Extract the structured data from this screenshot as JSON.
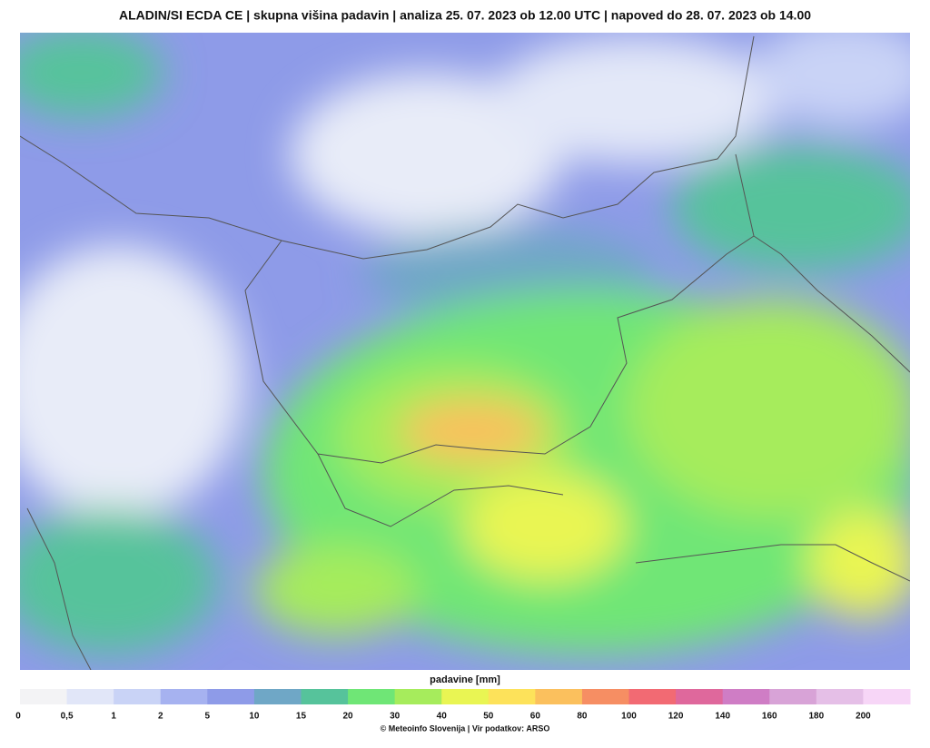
{
  "header": {
    "title": "ALADIN/SI ECDA CE | skupna višina padavin | analiza 25. 07. 2023 ob 12.00 UTC | napoved do 28. 07. 2023 ob 14.00"
  },
  "legend": {
    "title": "padavine [mm]",
    "bins": [
      {
        "label": "0",
        "color": "#f3f3f5"
      },
      {
        "label": "0,5",
        "color": "#e1e6f8"
      },
      {
        "label": "1",
        "color": "#c9d3f6"
      },
      {
        "label": "2",
        "color": "#a6b2f0"
      },
      {
        "label": "5",
        "color": "#8e9be8"
      },
      {
        "label": "10",
        "color": "#6fa7c6"
      },
      {
        "label": "15",
        "color": "#56c39b"
      },
      {
        "label": "20",
        "color": "#6fe676"
      },
      {
        "label": "30",
        "color": "#a6ec5c"
      },
      {
        "label": "40",
        "color": "#e9f553"
      },
      {
        "label": "50",
        "color": "#fde25a"
      },
      {
        "label": "60",
        "color": "#fbc05d"
      },
      {
        "label": "80",
        "color": "#f68e63"
      },
      {
        "label": "100",
        "color": "#f26a73"
      },
      {
        "label": "120",
        "color": "#df689c"
      },
      {
        "label": "140",
        "color": "#cf7dc5"
      },
      {
        "label": "160",
        "color": "#d8a3d7"
      },
      {
        "label": "180",
        "color": "#e5bfe7"
      },
      {
        "label": "200",
        "color": "#f7d6f7"
      }
    ]
  },
  "footer": {
    "credit": "© Meteoinfo Slovenija | Vir podatkov: ARSO"
  }
}
